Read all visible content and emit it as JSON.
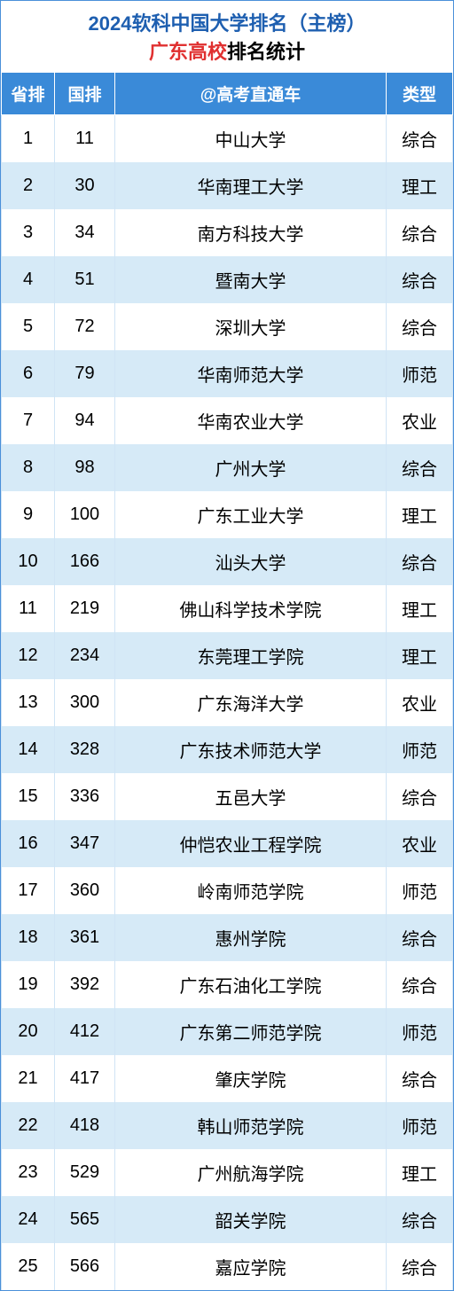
{
  "title": {
    "line1": "2024软科中国大学排名（主榜）",
    "line2_red": "广东高校",
    "line2_black": "排名统计"
  },
  "table": {
    "headers": {
      "province_rank": "省排",
      "national_rank": "国排",
      "name": "@高考直通车",
      "type": "类型"
    },
    "header_bg": "#3a8ad8",
    "header_fg": "#ffffff",
    "row_odd_bg": "#ffffff",
    "row_even_bg": "#d6eaf7",
    "border_color": "#d0e4f5",
    "font_size_body": 20,
    "font_size_header": 19,
    "rows": [
      {
        "prov": "1",
        "nat": "11",
        "name": "中山大学",
        "type": "综合"
      },
      {
        "prov": "2",
        "nat": "30",
        "name": "华南理工大学",
        "type": "理工"
      },
      {
        "prov": "3",
        "nat": "34",
        "name": "南方科技大学",
        "type": "综合"
      },
      {
        "prov": "4",
        "nat": "51",
        "name": "暨南大学",
        "type": "综合"
      },
      {
        "prov": "5",
        "nat": "72",
        "name": "深圳大学",
        "type": "综合"
      },
      {
        "prov": "6",
        "nat": "79",
        "name": "华南师范大学",
        "type": "师范"
      },
      {
        "prov": "7",
        "nat": "94",
        "name": "华南农业大学",
        "type": "农业"
      },
      {
        "prov": "8",
        "nat": "98",
        "name": "广州大学",
        "type": "综合"
      },
      {
        "prov": "9",
        "nat": "100",
        "name": "广东工业大学",
        "type": "理工"
      },
      {
        "prov": "10",
        "nat": "166",
        "name": "汕头大学",
        "type": "综合"
      },
      {
        "prov": "11",
        "nat": "219",
        "name": "佛山科学技术学院",
        "type": "理工"
      },
      {
        "prov": "12",
        "nat": "234",
        "name": "东莞理工学院",
        "type": "理工"
      },
      {
        "prov": "13",
        "nat": "300",
        "name": "广东海洋大学",
        "type": "农业"
      },
      {
        "prov": "14",
        "nat": "328",
        "name": "广东技术师范大学",
        "type": "师范"
      },
      {
        "prov": "15",
        "nat": "336",
        "name": "五邑大学",
        "type": "综合"
      },
      {
        "prov": "16",
        "nat": "347",
        "name": "仲恺农业工程学院",
        "type": "农业"
      },
      {
        "prov": "17",
        "nat": "360",
        "name": "岭南师范学院",
        "type": "师范"
      },
      {
        "prov": "18",
        "nat": "361",
        "name": "惠州学院",
        "type": "综合"
      },
      {
        "prov": "19",
        "nat": "392",
        "name": "广东石油化工学院",
        "type": "综合"
      },
      {
        "prov": "20",
        "nat": "412",
        "name": "广东第二师范学院",
        "type": "师范"
      },
      {
        "prov": "21",
        "nat": "417",
        "name": "肇庆学院",
        "type": "综合"
      },
      {
        "prov": "22",
        "nat": "418",
        "name": "韩山师范学院",
        "type": "师范"
      },
      {
        "prov": "23",
        "nat": "529",
        "name": "广州航海学院",
        "type": "理工"
      },
      {
        "prov": "24",
        "nat": "565",
        "name": "韶关学院",
        "type": "综合"
      },
      {
        "prov": "25",
        "nat": "566",
        "name": "嘉应学院",
        "type": "综合"
      }
    ]
  }
}
